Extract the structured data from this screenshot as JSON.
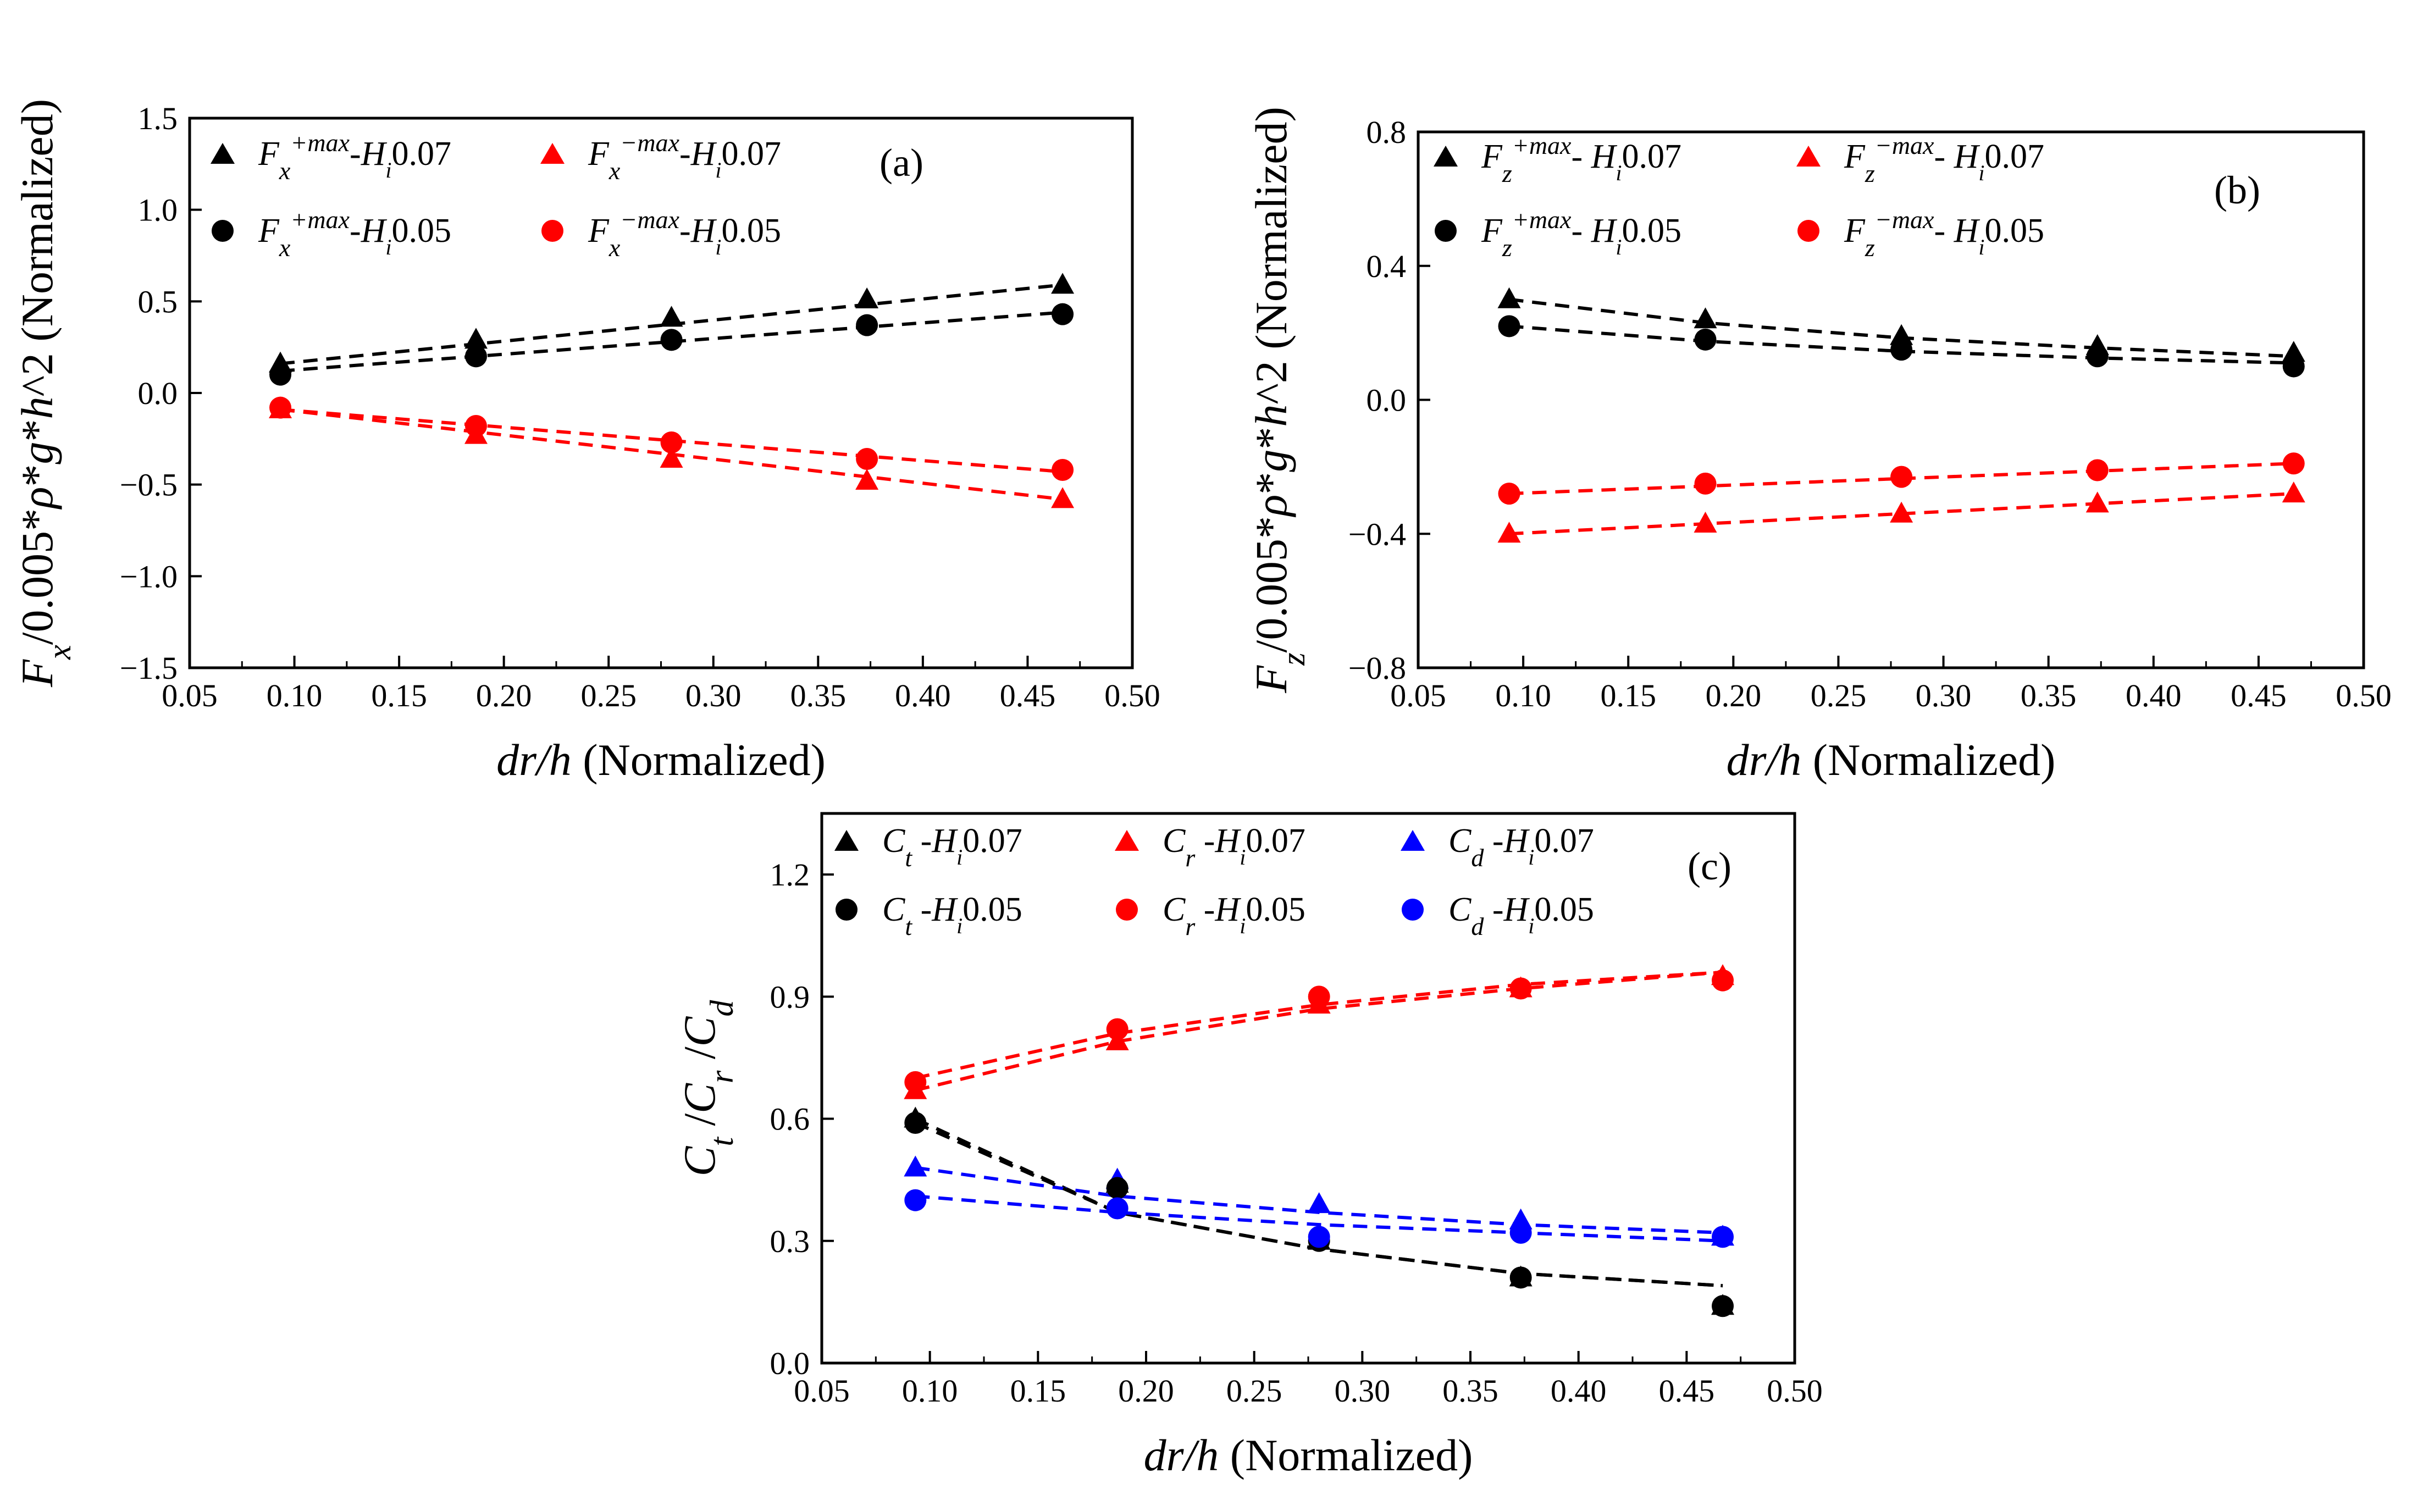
{
  "figure": {
    "panels": [
      "(a)",
      "(b)",
      "(c)"
    ]
  },
  "chart_data": [
    {
      "id": "a",
      "type": "scatter",
      "panel_label": "(a)",
      "xlabel": "dr/h (Normalized)",
      "ylabel": "Fx/0.005*ρ*g*h^2 (Normalized)",
      "xlim": [
        0.05,
        0.5
      ],
      "ylim": [
        -1.5,
        1.5
      ],
      "xticks": [
        "0.05",
        "0.10",
        "0.15",
        "0.20",
        "0.25",
        "0.30",
        "0.35",
        "0.40",
        "0.45",
        "0.50"
      ],
      "yticks": [
        "-1.5",
        "-1.0",
        "-0.5",
        "0.0",
        "0.5",
        "1.0",
        "1.5"
      ],
      "x": [
        0.0933,
        0.1867,
        0.28,
        0.3733,
        0.4667
      ],
      "series": [
        {
          "name": "Fx+max-Hi0.07",
          "base": "F",
          "sub": "x",
          "sup": "+max",
          "suffix": "-",
          "hi": "0.07",
          "marker": "triangle",
          "color": "#000000",
          "values": [
            0.16,
            0.29,
            0.41,
            0.51,
            0.59
          ],
          "fit": [
            0.16,
            0.2675,
            0.375,
            0.4825,
            0.59
          ]
        },
        {
          "name": "Fx−max-Hi0.07",
          "base": "F",
          "sub": "x",
          "sup": "−max",
          "suffix": "-",
          "hi": "0.07",
          "marker": "triangle",
          "color": "#ff0000",
          "values": [
            -0.09,
            -0.23,
            -0.36,
            -0.48,
            -0.58
          ],
          "fit": [
            -0.09,
            -0.2125,
            -0.335,
            -0.4575,
            -0.58
          ]
        },
        {
          "name": "Fx+max-Hi0.05",
          "base": "F",
          "sub": "x",
          "sup": "+max",
          "suffix": "-",
          "hi": "0.05",
          "marker": "circle",
          "color": "#000000",
          "values": [
            0.1,
            0.2,
            0.29,
            0.37,
            0.43
          ],
          "fit": [
            0.12,
            0.2,
            0.28,
            0.36,
            0.44
          ]
        },
        {
          "name": "Fx−max-Hi0.05",
          "base": "F",
          "sub": "x",
          "sup": "−max",
          "suffix": "-",
          "hi": "0.05",
          "marker": "circle",
          "color": "#ff0000",
          "values": [
            -0.08,
            -0.18,
            -0.27,
            -0.36,
            -0.42
          ],
          "fit": [
            -0.09,
            -0.175,
            -0.26,
            -0.345,
            -0.43
          ]
        }
      ]
    },
    {
      "id": "b",
      "type": "scatter",
      "panel_label": "(b)",
      "xlabel": "dr/h (Normalized)",
      "ylabel": "Fz/0.005*ρ*g*h^2 (Normalized)",
      "xlim": [
        0.05,
        0.5
      ],
      "ylim": [
        -0.8,
        0.8
      ],
      "xticks": [
        "0.05",
        "0.10",
        "0.15",
        "0.20",
        "0.25",
        "0.30",
        "0.35",
        "0.40",
        "0.45",
        "0.50"
      ],
      "yticks": [
        "-0.8",
        "-0.4",
        "0.0",
        "0.4",
        "0.8"
      ],
      "x": [
        0.0933,
        0.1867,
        0.28,
        0.3733,
        0.4667
      ],
      "series": [
        {
          "name": "Fz+max- Hi0.07",
          "base": "F",
          "sub": "z",
          "sup": "+max",
          "suffix": "- ",
          "hi": "0.07",
          "marker": "triangle",
          "color": "#000000",
          "values": [
            0.3,
            0.24,
            0.19,
            0.16,
            0.14
          ],
          "fit": [
            0.3,
            0.23,
            0.185,
            0.155,
            0.13
          ]
        },
        {
          "name": "Fz−max- Hi0.07",
          "base": "F",
          "sub": "z",
          "sup": "−max",
          "suffix": "- ",
          "hi": "0.07",
          "marker": "triangle",
          "color": "#ff0000",
          "values": [
            -0.4,
            -0.37,
            -0.34,
            -0.31,
            -0.28
          ],
          "fit": [
            -0.4,
            -0.37,
            -0.34,
            -0.31,
            -0.28
          ]
        },
        {
          "name": "Fz+max- Hi0.05",
          "base": "F",
          "sub": "z",
          "sup": "+max",
          "suffix": "- ",
          "hi": "0.05",
          "marker": "circle",
          "color": "#000000",
          "values": [
            0.22,
            0.18,
            0.15,
            0.13,
            0.1
          ],
          "fit": [
            0.22,
            0.175,
            0.145,
            0.125,
            0.11
          ]
        },
        {
          "name": "Fz−max- Hi0.05",
          "base": "F",
          "sub": "z",
          "sup": "−max",
          "suffix": "- ",
          "hi": "0.05",
          "marker": "circle",
          "color": "#ff0000",
          "values": [
            -0.28,
            -0.25,
            -0.23,
            -0.21,
            -0.19
          ],
          "fit": [
            -0.28,
            -0.2575,
            -0.235,
            -0.2125,
            -0.19
          ]
        }
      ]
    },
    {
      "id": "c",
      "type": "scatter",
      "panel_label": "(c)",
      "xlabel": "dr/h (Normalized)",
      "ylabel": "Ct /Cr /Cd",
      "xlim": [
        0.05,
        0.5
      ],
      "ylim": [
        0.0,
        1.35
      ],
      "xticks": [
        "0.05",
        "0.10",
        "0.15",
        "0.20",
        "0.25",
        "0.30",
        "0.35",
        "0.40",
        "0.45",
        "0.50"
      ],
      "yticks": [
        "0.0",
        "0.3",
        "0.6",
        "0.9",
        "1.2"
      ],
      "x": [
        0.0933,
        0.1867,
        0.28,
        0.3733,
        0.4667
      ],
      "series": [
        {
          "name": "Ct -Hi0.07",
          "base": "C",
          "sub": "t",
          "sup": "",
          "suffix": " -",
          "hi": "0.07",
          "marker": "triangle",
          "color": "#000000",
          "values": [
            0.6,
            0.44,
            0.3,
            0.21,
            0.14
          ],
          "fit": [
            0.6,
            0.37,
            0.28,
            0.22,
            0.19
          ]
        },
        {
          "name": "Cr -Hi0.07",
          "base": "C",
          "sub": "r",
          "sup": "",
          "suffix": " -",
          "hi": "0.07",
          "marker": "triangle",
          "color": "#ff0000",
          "values": [
            0.67,
            0.79,
            0.88,
            0.92,
            0.95
          ],
          "fit": [
            0.67,
            0.79,
            0.87,
            0.92,
            0.96
          ]
        },
        {
          "name": "Cd -Hi0.07",
          "base": "C",
          "sub": "d",
          "sup": "",
          "suffix": " -",
          "hi": "0.07",
          "marker": "triangle",
          "color": "#0000ff",
          "values": [
            0.48,
            0.45,
            0.39,
            0.35,
            0.31
          ],
          "fit": [
            0.48,
            0.41,
            0.37,
            0.34,
            0.32
          ]
        },
        {
          "name": "Ct -Hi0.05",
          "base": "C",
          "sub": "t",
          "sup": "",
          "suffix": " -",
          "hi": "0.05",
          "marker": "circle",
          "color": "#000000",
          "values": [
            0.59,
            0.43,
            0.3,
            0.21,
            0.14
          ],
          "fit": [
            0.59,
            0.37,
            0.28,
            0.22,
            0.19
          ]
        },
        {
          "name": "Cr -Hi0.05",
          "base": "C",
          "sub": "r",
          "sup": "",
          "suffix": " -",
          "hi": "0.05",
          "marker": "circle",
          "color": "#ff0000",
          "values": [
            0.69,
            0.82,
            0.9,
            0.92,
            0.94
          ],
          "fit": [
            0.7,
            0.81,
            0.88,
            0.93,
            0.96
          ]
        },
        {
          "name": "Cd -Hi0.05",
          "base": "C",
          "sub": "d",
          "sup": "",
          "suffix": " -",
          "hi": "0.05",
          "marker": "circle",
          "color": "#0000ff",
          "values": [
            0.4,
            0.38,
            0.31,
            0.32,
            0.31
          ],
          "fit": [
            0.41,
            0.37,
            0.34,
            0.32,
            0.3
          ]
        }
      ]
    }
  ]
}
